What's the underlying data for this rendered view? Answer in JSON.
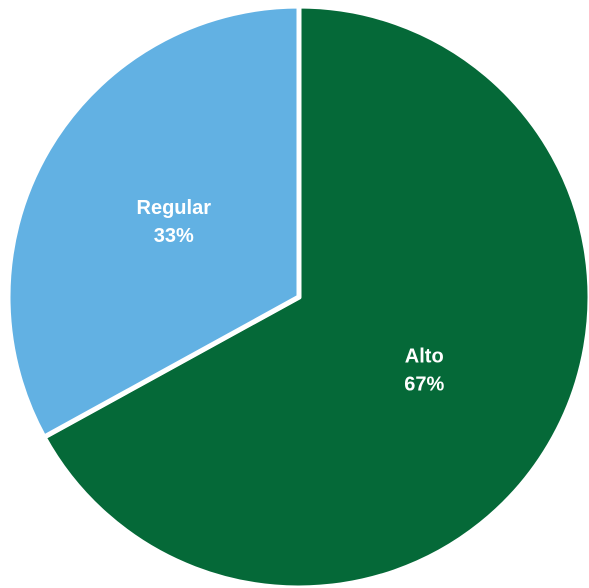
{
  "chart_data": {
    "type": "pie",
    "categories": [
      "Alto",
      "Regular"
    ],
    "values": [
      67,
      33
    ],
    "value_labels": [
      "67%",
      "33%"
    ],
    "colors": [
      "#056938",
      "#62b1e3"
    ],
    "start_angle": 0,
    "direction": "clockwise"
  }
}
